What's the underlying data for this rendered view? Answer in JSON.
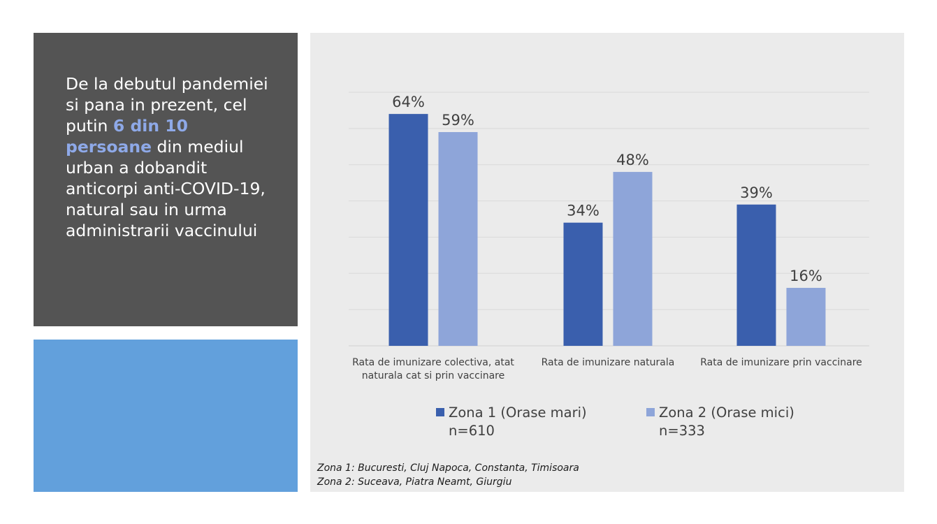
{
  "headline": {
    "part1": "De la debutul pandemiei si pana in prezent, cel putin ",
    "highlight": "6 din 10 persoane",
    "part2": " din mediul urban a dobandit anticorpi anti-COVID-19, natural sau in urma administrarii vaccinului"
  },
  "colors": {
    "series1": "#3a5fad",
    "series2": "#8ea5d9",
    "highlight": "#8ea9e8",
    "dark_panel": "#545454",
    "blue_panel": "#62a0dc",
    "chart_bg": "#ebebeb"
  },
  "chart_data": {
    "type": "bar",
    "categories": [
      "Rata de imunizare colectiva, atat naturala cat si prin vaccinare",
      "Rata de imunizare naturala",
      "Rata de imunizare prin vaccinare"
    ],
    "series": [
      {
        "name": "Zona 1 (Orase mari)",
        "n": "n=610",
        "values": [
          64,
          34,
          39
        ],
        "labels": [
          "64%",
          "34%",
          "39%"
        ]
      },
      {
        "name": "Zona 2 (Orase mici)",
        "n": "n=333",
        "values": [
          59,
          48,
          16
        ],
        "labels": [
          "59%",
          "48%",
          "16%"
        ]
      }
    ],
    "ylim": [
      0,
      70
    ],
    "grid": true,
    "legend_position": "bottom"
  },
  "footnotes": [
    "Zona 1: Bucuresti, Cluj Napoca, Constanta, Timisoara",
    "Zona 2: Suceava, Piatra Neamt, Giurgiu"
  ]
}
